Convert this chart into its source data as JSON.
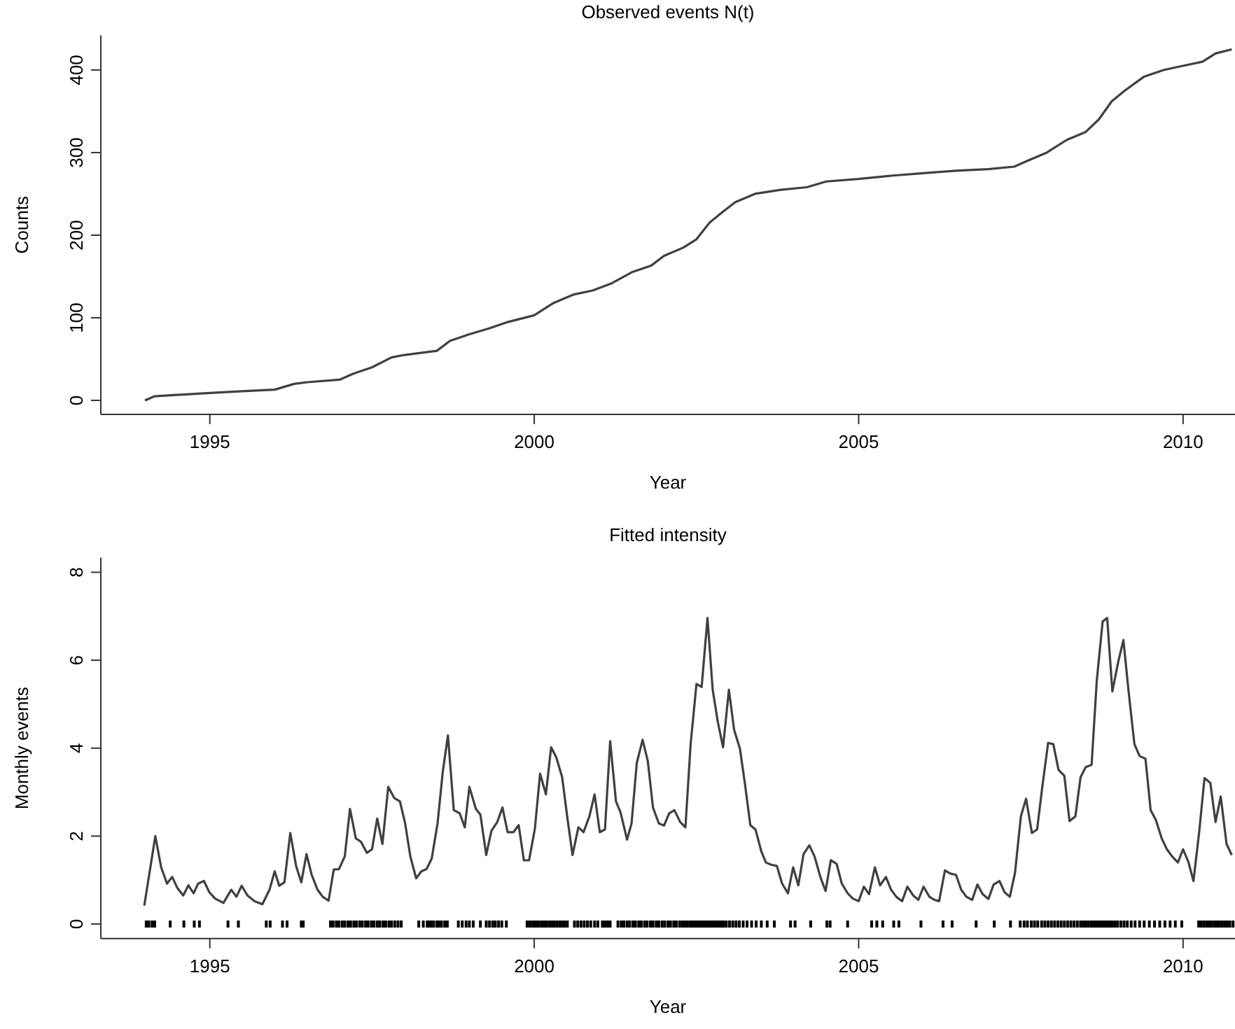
{
  "chart_data": [
    {
      "type": "line",
      "title": "Observed events N(t)",
      "xlabel": "Year",
      "ylabel": "Counts",
      "xlim": [
        1993.32,
        2010.8
      ],
      "ylim": [
        -17,
        442
      ],
      "xticks": [
        1995,
        2000,
        2005,
        2010
      ],
      "yticks": [
        0,
        100,
        200,
        300,
        400
      ],
      "series": [
        {
          "color": "#404040",
          "x": [
            1994.0,
            1994.15,
            1995.0,
            1995.5,
            1996.0,
            1996.3,
            1996.5,
            1997.0,
            1997.2,
            1997.5,
            1997.8,
            1998.0,
            1998.5,
            1998.7,
            1999.0,
            1999.3,
            1999.6,
            2000.0,
            2000.3,
            2000.6,
            2000.9,
            2001.2,
            2001.5,
            2001.8,
            2002.0,
            2002.3,
            2002.5,
            2002.7,
            2002.9,
            2003.1,
            2003.4,
            2003.8,
            2004.2,
            2004.5,
            2005.0,
            2005.5,
            2006.0,
            2006.5,
            2007.0,
            2007.4,
            2007.6,
            2007.9,
            2008.2,
            2008.5,
            2008.7,
            2008.9,
            2009.1,
            2009.4,
            2009.7,
            2010.0,
            2010.3,
            2010.5,
            2010.75
          ],
          "values": [
            0,
            5,
            9,
            11,
            13,
            20,
            22,
            25,
            32,
            40,
            52,
            55,
            60,
            72,
            80,
            87,
            95,
            103,
            118,
            128,
            133,
            142,
            155,
            163,
            175,
            185,
            195,
            215,
            228,
            240,
            250,
            255,
            258,
            265,
            268,
            272,
            275,
            278,
            280,
            283,
            290,
            300,
            315,
            325,
            340,
            362,
            375,
            392,
            400,
            405,
            410,
            420,
            425
          ]
        }
      ]
    },
    {
      "type": "line",
      "title": "Fitted intensity",
      "xlabel": "Year",
      "ylabel": "Monthly events",
      "xlim": [
        1993.32,
        2010.8
      ],
      "ylim": [
        -0.33,
        8.33
      ],
      "xticks": [
        1995,
        2000,
        2005,
        2010
      ],
      "yticks": [
        0,
        2,
        4,
        6,
        8
      ],
      "series": [
        {
          "color": "#404040",
          "x": [
            1993.99,
            1994.16,
            1994.25,
            1994.34,
            1994.42,
            1994.5,
            1994.59,
            1994.67,
            1994.75,
            1994.82,
            1994.91,
            1994.99,
            1995.08,
            1995.21,
            1995.33,
            1995.41,
            1995.49,
            1995.58,
            1995.69,
            1995.81,
            1995.92,
            1996.0,
            1996.07,
            1996.15,
            1996.24,
            1996.33,
            1996.41,
            1996.49,
            1996.57,
            1996.66,
            1996.74,
            1996.83,
            1996.91,
            1996.99,
            1997.08,
            1997.16,
            1997.25,
            1997.33,
            1997.42,
            1997.5,
            1997.58,
            1997.66,
            1997.75,
            1997.84,
            1997.93,
            1998.01,
            1998.09,
            1998.18,
            1998.26,
            1998.34,
            1998.42,
            1998.51,
            1998.59,
            1998.67,
            1998.76,
            1998.85,
            1998.93,
            1999.0,
            1999.1,
            1999.17,
            1999.26,
            1999.34,
            1999.43,
            1999.51,
            1999.59,
            1999.68,
            1999.76,
            1999.84,
            1999.92,
            2000.01,
            2000.09,
            2000.18,
            2000.26,
            2000.34,
            2000.43,
            2000.51,
            2000.59,
            2000.68,
            2000.76,
            2000.85,
            2000.93,
            2001.01,
            2001.09,
            2001.17,
            2001.26,
            2001.33,
            2001.43,
            2001.5,
            2001.58,
            2001.67,
            2001.75,
            2001.83,
            2001.92,
            2002.0,
            2002.08,
            2002.16,
            2002.25,
            2002.33,
            2002.41,
            2002.5,
            2002.58,
            2002.67,
            2002.75,
            2002.83,
            2002.91,
            2003.0,
            2003.08,
            2003.17,
            2003.25,
            2003.33,
            2003.41,
            2003.5,
            2003.57,
            2003.65,
            2003.74,
            2003.82,
            2003.91,
            2003.99,
            2004.07,
            2004.15,
            2004.24,
            2004.32,
            2004.41,
            2004.49,
            2004.57,
            2004.66,
            2004.74,
            2004.83,
            2004.91,
            2005.0,
            2005.08,
            2005.16,
            2005.25,
            2005.33,
            2005.42,
            2005.5,
            2005.58,
            2005.67,
            2005.75,
            2005.84,
            2005.92,
            2006.0,
            2006.09,
            2006.17,
            2006.24,
            2006.33,
            2006.41,
            2006.5,
            2006.58,
            2006.66,
            2006.75,
            2006.83,
            2006.91,
            2007.0,
            2007.08,
            2007.17,
            2007.25,
            2007.33,
            2007.41,
            2007.5,
            2007.58,
            2007.67,
            2007.75,
            2007.83,
            2007.92,
            2008.0,
            2008.08,
            2008.17,
            2008.25,
            2008.34,
            2008.42,
            2008.5,
            2008.59,
            2008.67,
            2008.76,
            2008.83,
            2008.91,
            2009.0,
            2009.08,
            2009.16,
            2009.25,
            2009.33,
            2009.42,
            2009.5,
            2009.58,
            2009.67,
            2009.75,
            2009.83,
            2009.92,
            2010.0,
            2010.08,
            2010.16,
            2010.25,
            2010.33,
            2010.42,
            2010.5,
            2010.58,
            2010.67,
            2010.75
          ],
          "values": [
            0.42,
            2.0,
            1.29,
            0.92,
            1.07,
            0.82,
            0.65,
            0.88,
            0.7,
            0.92,
            0.98,
            0.73,
            0.58,
            0.48,
            0.78,
            0.62,
            0.87,
            0.65,
            0.52,
            0.45,
            0.78,
            1.2,
            0.87,
            0.95,
            2.07,
            1.32,
            0.95,
            1.59,
            1.12,
            0.78,
            0.62,
            0.53,
            1.24,
            1.25,
            1.54,
            2.62,
            1.95,
            1.87,
            1.62,
            1.7,
            2.4,
            1.82,
            3.12,
            2.87,
            2.79,
            2.29,
            1.54,
            1.04,
            1.2,
            1.25,
            1.49,
            2.29,
            3.46,
            4.29,
            2.59,
            2.52,
            2.2,
            3.12,
            2.62,
            2.49,
            1.57,
            2.12,
            2.32,
            2.65,
            2.09,
            2.09,
            2.25,
            1.45,
            1.45,
            2.17,
            3.42,
            2.95,
            4.02,
            3.79,
            3.34,
            2.42,
            1.57,
            2.2,
            2.09,
            2.45,
            2.95,
            2.09,
            2.15,
            4.16,
            2.79,
            2.54,
            1.92,
            2.29,
            3.66,
            4.19,
            3.71,
            2.65,
            2.29,
            2.24,
            2.52,
            2.59,
            2.32,
            2.2,
            4.09,
            5.46,
            5.39,
            6.96,
            5.33,
            4.59,
            4.02,
            5.33,
            4.42,
            3.99,
            3.16,
            2.25,
            2.15,
            1.65,
            1.4,
            1.35,
            1.32,
            0.92,
            0.7,
            1.29,
            0.88,
            1.59,
            1.79,
            1.54,
            1.07,
            0.75,
            1.45,
            1.37,
            0.92,
            0.7,
            0.58,
            0.52,
            0.85,
            0.68,
            1.29,
            0.88,
            1.07,
            0.78,
            0.62,
            0.52,
            0.85,
            0.65,
            0.55,
            0.85,
            0.62,
            0.55,
            0.52,
            1.22,
            1.15,
            1.12,
            0.78,
            0.62,
            0.55,
            0.9,
            0.68,
            0.57,
            0.9,
            0.98,
            0.72,
            0.62,
            1.17,
            2.45,
            2.85,
            2.07,
            2.15,
            3.12,
            4.12,
            4.09,
            3.51,
            3.37,
            2.34,
            2.45,
            3.34,
            3.57,
            3.62,
            5.54,
            6.88,
            6.96,
            5.29,
            5.96,
            6.46,
            5.29,
            4.09,
            3.82,
            3.76,
            2.59,
            2.37,
            1.95,
            1.7,
            1.54,
            1.4,
            1.7,
            1.42,
            0.98,
            2.12,
            3.32,
            3.21,
            2.32,
            2.9,
            1.82,
            1.57
          ]
        },
        {
          "type": "scatter",
          "color": "#000000",
          "x": [
            1994.02,
            1994.06,
            1994.11,
            1994.15,
            1994.39,
            1994.6,
            1994.76,
            1994.84,
            1995.28,
            1995.44,
            1995.87,
            1995.93,
            1996.12,
            1996.19,
            1996.41,
            1996.44,
            1996.86,
            1996.9,
            1996.95,
            1996.99,
            1997.04,
            1997.08,
            1997.13,
            1997.17,
            1997.22,
            1997.26,
            1997.31,
            1997.35,
            1997.4,
            1997.44,
            1997.49,
            1997.53,
            1997.58,
            1997.62,
            1997.67,
            1997.71,
            1997.76,
            1997.8,
            1997.85,
            1997.9,
            1997.95,
            1998.22,
            1998.29,
            1998.35,
            1998.38,
            1998.41,
            1998.45,
            1998.5,
            1998.53,
            1998.57,
            1998.62,
            1998.66,
            1998.83,
            1998.89,
            1998.95,
            1999.0,
            1999.06,
            1999.17,
            1999.26,
            1999.31,
            1999.36,
            1999.4,
            1999.45,
            1999.5,
            1999.57,
            1999.89,
            1999.93,
            1999.97,
            2000.0,
            2000.03,
            2000.06,
            2000.1,
            2000.14,
            2000.17,
            2000.2,
            2000.24,
            2000.28,
            2000.31,
            2000.35,
            2000.39,
            2000.43,
            2000.47,
            2000.51,
            2000.62,
            2000.67,
            2000.72,
            2000.77,
            2000.82,
            2000.87,
            2000.93,
            2000.98,
            2001.05,
            2001.08,
            2001.11,
            2001.14,
            2001.17,
            2001.29,
            2001.34,
            2001.38,
            2001.43,
            2001.47,
            2001.52,
            2001.56,
            2001.61,
            2001.65,
            2001.7,
            2001.74,
            2001.79,
            2001.83,
            2001.88,
            2001.92,
            2001.97,
            2002.01,
            2002.06,
            2002.1,
            2002.15,
            2002.19,
            2002.24,
            2002.28,
            2002.32,
            2002.36,
            2002.4,
            2002.43,
            2002.46,
            2002.49,
            2002.52,
            2002.55,
            2002.58,
            2002.61,
            2002.64,
            2002.67,
            2002.7,
            2002.73,
            2002.76,
            2002.79,
            2002.82,
            2002.85,
            2002.88,
            2002.92,
            2002.96,
            2003.01,
            2003.06,
            2003.11,
            2003.16,
            2003.22,
            2003.28,
            2003.35,
            2003.42,
            2003.5,
            2003.59,
            2003.7,
            2003.95,
            2004.02,
            2004.26,
            2004.51,
            2004.56,
            2004.83,
            2005.2,
            2005.28,
            2005.37,
            2005.54,
            2005.62,
            2005.96,
            2006.3,
            2006.44,
            2006.81,
            2007.09,
            2007.34,
            2007.49,
            2007.55,
            2007.6,
            2007.66,
            2007.71,
            2007.76,
            2007.82,
            2007.87,
            2007.92,
            2007.97,
            2008.02,
            2008.07,
            2008.12,
            2008.17,
            2008.22,
            2008.27,
            2008.32,
            2008.37,
            2008.42,
            2008.46,
            2008.5,
            2008.54,
            2008.58,
            2008.61,
            2008.64,
            2008.67,
            2008.7,
            2008.73,
            2008.76,
            2008.79,
            2008.82,
            2008.85,
            2008.88,
            2008.91,
            2008.95,
            2008.99,
            2009.04,
            2009.09,
            2009.14,
            2009.2,
            2009.26,
            2009.33,
            2009.4,
            2009.48,
            2009.56,
            2009.64,
            2009.72,
            2009.8,
            2009.88,
            2009.98,
            2010.24,
            2010.28,
            2010.32,
            2010.36,
            2010.4,
            2010.44,
            2010.48,
            2010.52,
            2010.56,
            2010.6,
            2010.64,
            2010.68,
            2010.72,
            2010.77
          ],
          "values": [
            0,
            0,
            0,
            0,
            0,
            0,
            0,
            0,
            0,
            0,
            0,
            0,
            0,
            0,
            0,
            0,
            0,
            0,
            0,
            0,
            0,
            0,
            0,
            0,
            0,
            0,
            0,
            0,
            0,
            0,
            0,
            0,
            0,
            0,
            0,
            0,
            0,
            0,
            0,
            0,
            0,
            0,
            0,
            0,
            0,
            0,
            0,
            0,
            0,
            0,
            0,
            0,
            0,
            0,
            0,
            0,
            0,
            0,
            0,
            0,
            0,
            0,
            0,
            0,
            0,
            0,
            0,
            0,
            0,
            0,
            0,
            0,
            0,
            0,
            0,
            0,
            0,
            0,
            0,
            0,
            0,
            0,
            0,
            0,
            0,
            0,
            0,
            0,
            0,
            0,
            0,
            0,
            0,
            0,
            0,
            0,
            0,
            0,
            0,
            0,
            0,
            0,
            0,
            0,
            0,
            0,
            0,
            0,
            0,
            0,
            0,
            0,
            0,
            0,
            0,
            0,
            0,
            0,
            0,
            0,
            0,
            0,
            0,
            0,
            0,
            0,
            0,
            0,
            0,
            0,
            0,
            0,
            0,
            0,
            0,
            0,
            0,
            0,
            0,
            0,
            0,
            0,
            0,
            0,
            0,
            0,
            0,
            0,
            0,
            0,
            0,
            0,
            0,
            0,
            0,
            0,
            0,
            0,
            0,
            0,
            0,
            0,
            0,
            0,
            0,
            0,
            0,
            0,
            0,
            0,
            0,
            0,
            0,
            0,
            0,
            0,
            0,
            0,
            0,
            0,
            0,
            0,
            0,
            0,
            0,
            0,
            0,
            0,
            0,
            0,
            0,
            0,
            0,
            0,
            0,
            0,
            0,
            0,
            0,
            0,
            0,
            0,
            0,
            0,
            0,
            0,
            0,
            0,
            0,
            0,
            0,
            0,
            0,
            0,
            0,
            0,
            0,
            0,
            0,
            0,
            0,
            0,
            0,
            0,
            0,
            0,
            0,
            0,
            0,
            0,
            0,
            0
          ]
        }
      ]
    }
  ]
}
